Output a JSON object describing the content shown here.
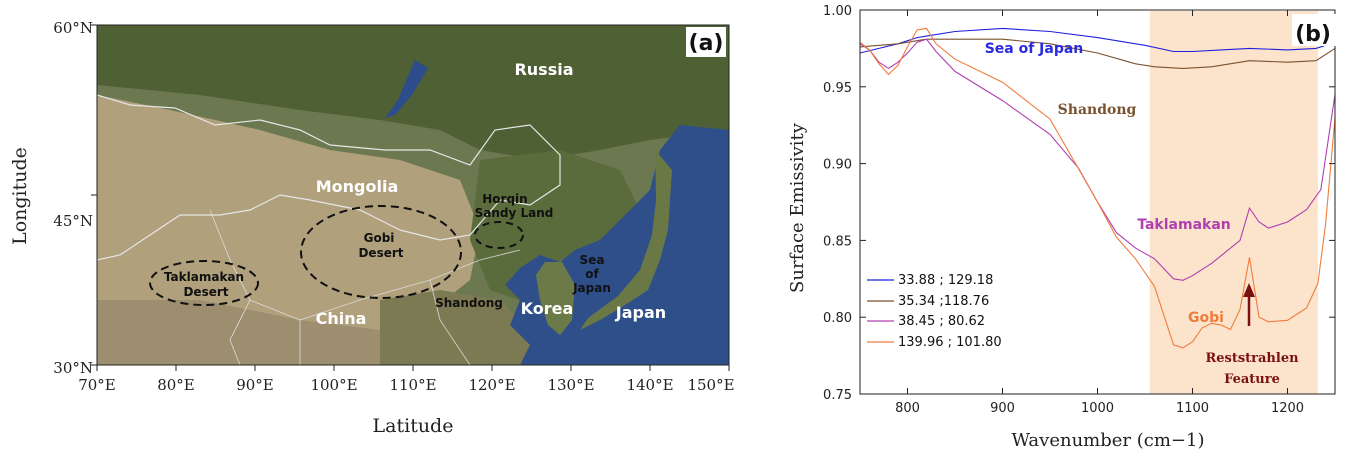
{
  "map": {
    "panel_label": "(a)",
    "x_axis_label": "Latitude",
    "y_axis_label": "Longitude",
    "x_ticks": [
      "70°E",
      "80°E",
      "90°E",
      "100°E",
      "110°E",
      "120°E",
      "130°E",
      "140°E",
      "150°E"
    ],
    "y_ticks": [
      "60°N",
      "45°N",
      "30°N"
    ],
    "labels": {
      "russia": "Russia",
      "mongolia": "Mongolia",
      "china": "China",
      "korea": "Korea",
      "japan": "Japan",
      "shandong": "Shandong",
      "horqin_line1": "Horqin",
      "horqin_line2": "Sandy Land",
      "gobi_line1": "Gobi",
      "gobi_line2": "Desert",
      "taklamakan_line1": "Taklamakan",
      "taklamakan_line2": "Desert",
      "sea_line1": "Sea",
      "sea_line2": "of",
      "sea_line3": "Japan"
    },
    "colors": {
      "land": "#a89a78",
      "forest": "#5c6e3c",
      "sea": "#33528c",
      "border": "#e6e6e6"
    }
  },
  "chart_data": {
    "type": "line",
    "panel_label": "(b)",
    "xlabel": "Wavenumber (cm−1)",
    "ylabel": "Surface Emissivity",
    "xlim": [
      750,
      1250
    ],
    "ylim": [
      0.75,
      1.0
    ],
    "x_ticks": [
      800,
      900,
      1000,
      1100,
      1200
    ],
    "y_ticks": [
      "0.75",
      "0.80",
      "0.85",
      "0.90",
      "0.95",
      "1.00"
    ],
    "highlight_band": [
      1055,
      1232
    ],
    "highlight_color": "#fbe3cc",
    "series": [
      {
        "name": "33.88 ; 129.18",
        "color": "#1f1fdc",
        "x": [
          750,
          770,
          790,
          810,
          820,
          850,
          900,
          950,
          1000,
          1050,
          1080,
          1100,
          1130,
          1160,
          1200,
          1230,
          1250
        ],
        "y": [
          0.972,
          0.975,
          0.978,
          0.982,
          0.983,
          0.986,
          0.988,
          0.986,
          0.982,
          0.977,
          0.973,
          0.973,
          0.974,
          0.975,
          0.974,
          0.975,
          0.979
        ]
      },
      {
        "name": "35.34 ;118.76",
        "color": "#7a5230",
        "x": [
          750,
          770,
          790,
          810,
          820,
          850,
          900,
          950,
          1000,
          1040,
          1060,
          1090,
          1120,
          1160,
          1200,
          1230,
          1250
        ],
        "y": [
          0.976,
          0.977,
          0.978,
          0.98,
          0.981,
          0.981,
          0.981,
          0.978,
          0.972,
          0.965,
          0.963,
          0.962,
          0.963,
          0.967,
          0.966,
          0.967,
          0.975
        ]
      },
      {
        "name": "38.45 ; 80.62",
        "color": "#b040b0",
        "x": [
          750,
          760,
          770,
          780,
          790,
          800,
          810,
          820,
          830,
          850,
          900,
          950,
          980,
          1000,
          1020,
          1040,
          1060,
          1080,
          1090,
          1100,
          1120,
          1140,
          1150,
          1160,
          1170,
          1180,
          1200,
          1220,
          1235,
          1250
        ],
        "y": [
          0.978,
          0.974,
          0.966,
          0.962,
          0.966,
          0.972,
          0.979,
          0.981,
          0.973,
          0.96,
          0.941,
          0.919,
          0.897,
          0.875,
          0.855,
          0.845,
          0.838,
          0.825,
          0.824,
          0.827,
          0.835,
          0.845,
          0.85,
          0.871,
          0.862,
          0.858,
          0.862,
          0.87,
          0.883,
          0.945
        ]
      },
      {
        "name": "139.96 ; 101.80",
        "color": "#f07c3c",
        "x": [
          750,
          760,
          770,
          780,
          790,
          800,
          810,
          820,
          830,
          850,
          900,
          950,
          975,
          1000,
          1020,
          1040,
          1060,
          1080,
          1090,
          1100,
          1110,
          1120,
          1130,
          1140,
          1150,
          1160,
          1170,
          1180,
          1200,
          1220,
          1232,
          1240,
          1250
        ],
        "y": [
          0.979,
          0.974,
          0.965,
          0.958,
          0.964,
          0.976,
          0.987,
          0.988,
          0.978,
          0.968,
          0.953,
          0.929,
          0.902,
          0.875,
          0.852,
          0.838,
          0.82,
          0.782,
          0.78,
          0.784,
          0.793,
          0.796,
          0.795,
          0.792,
          0.805,
          0.839,
          0.8,
          0.797,
          0.798,
          0.806,
          0.822,
          0.86,
          0.93
        ]
      }
    ],
    "annotations": {
      "sea_of_japan": "Sea of Japan",
      "shandong": "Shandong",
      "taklamakan": "Taklamakan",
      "gobi": "Gobi",
      "reststrahlen_line1": "Reststrahlen",
      "reststrahlen_line2": "Feature"
    }
  }
}
